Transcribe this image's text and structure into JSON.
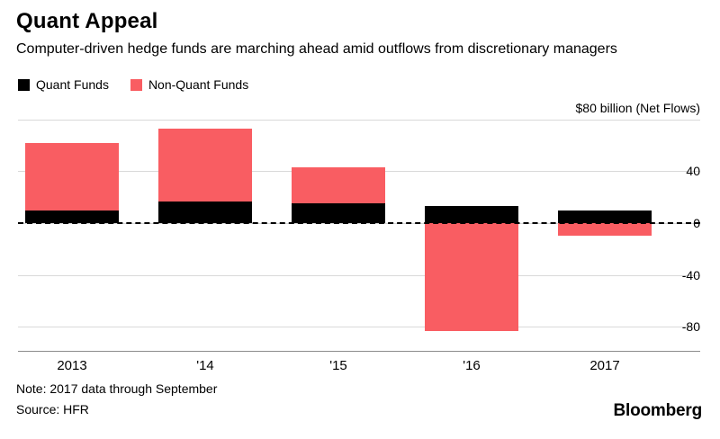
{
  "header": {
    "title": "Quant Appeal",
    "subtitle": "Computer-driven hedge funds are marching ahead amid outflows from discretionary managers"
  },
  "legend": [
    {
      "label": "Quant Funds",
      "color": "#000000"
    },
    {
      "label": "Non-Quant Funds",
      "color": "#f95d62"
    }
  ],
  "colors": {
    "quant": "#000000",
    "non_quant": "#f95d62",
    "gridline": "#d9d9d9",
    "axis": "#8c8c8c",
    "background": "#ffffff"
  },
  "chart_data": {
    "type": "bar",
    "stacked": true,
    "title": "Quant Appeal",
    "subtitle": "Computer-driven hedge funds are marching ahead amid outflows from discretionary managers",
    "unit_label": "$80 billion (Net Flows)",
    "categories": [
      "2013",
      "'14",
      "'15",
      "'16",
      "2017"
    ],
    "series": [
      {
        "name": "Quant Funds",
        "color": "#000000",
        "values": [
          10,
          17,
          15,
          13,
          10
        ]
      },
      {
        "name": "Non-Quant Funds",
        "color": "#f95d62",
        "values": [
          52,
          56,
          28,
          -83,
          -10
        ]
      }
    ],
    "yticks": [
      {
        "value": 80,
        "label": "$80 billion (Net Flows)",
        "placement": "above-line"
      },
      {
        "value": 40,
        "label": "40"
      },
      {
        "value": 0,
        "label": "0"
      },
      {
        "value": -40,
        "label": "-40"
      },
      {
        "value": -80,
        "label": "-80"
      }
    ],
    "ylim": [
      -95,
      95
    ],
    "zero_line": "dashed",
    "grid": true,
    "legend_position": "top-left"
  },
  "footer": {
    "note": "Note: 2017 data through September",
    "source": "Source: HFR",
    "brand": "Bloomberg"
  }
}
